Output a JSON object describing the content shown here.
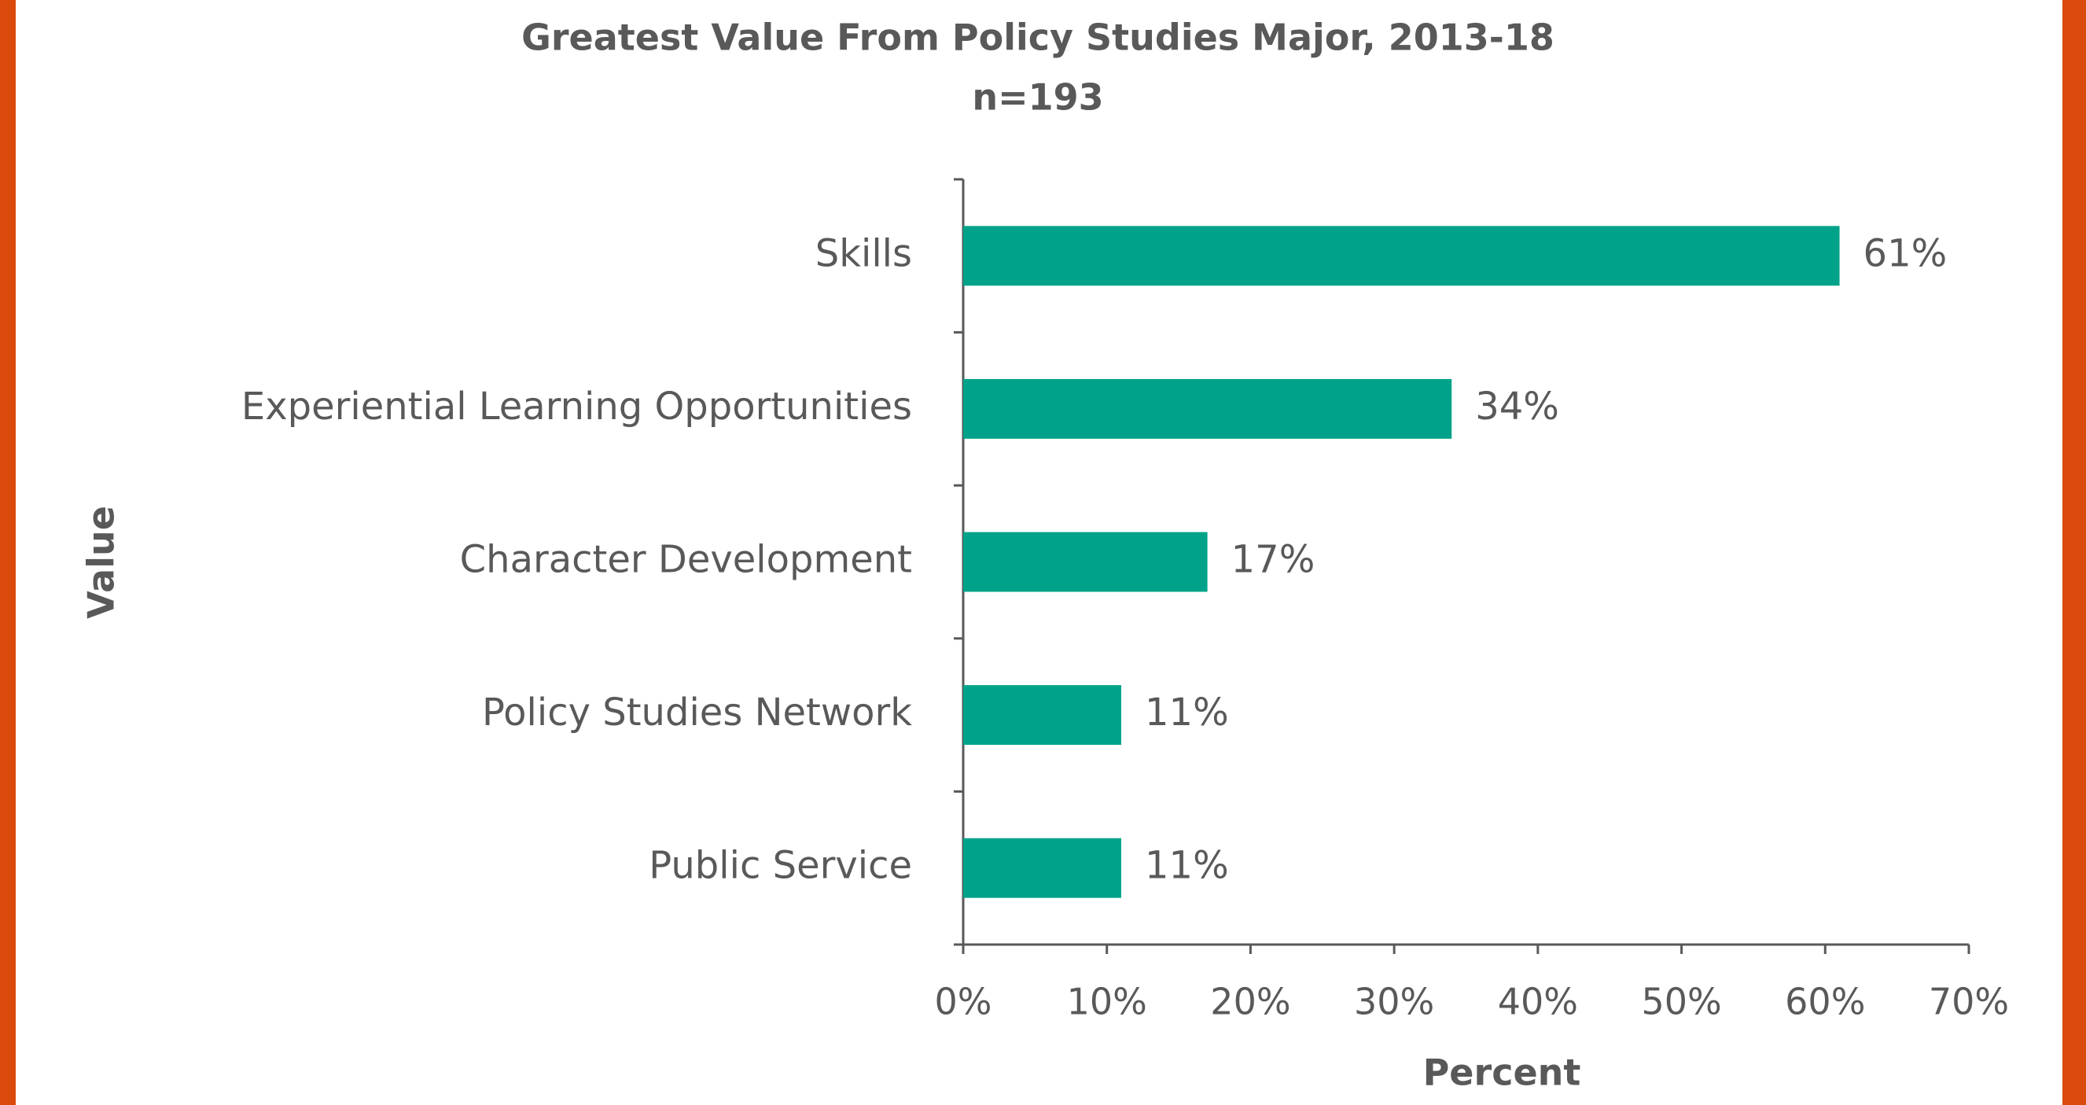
{
  "chart_data": {
    "type": "bar",
    "orientation": "horizontal",
    "title": "Greatest Value From Policy Studies Major, 2013-18",
    "subtitle": "n=193",
    "x_label": "Percent",
    "y_label": "Value",
    "categories": [
      "Skills",
      "Experiential Learning Opportunities",
      "Character Development",
      "Policy Studies Network",
      "Public Service"
    ],
    "values": [
      61,
      34,
      17,
      11,
      11
    ],
    "value_labels": [
      "61%",
      "34%",
      "17%",
      "11%",
      "11%"
    ],
    "color": "#00a389",
    "xlim": [
      0,
      70
    ],
    "xticks": [
      {
        "value": 0,
        "label": "0%"
      },
      {
        "value": 10,
        "label": "10%"
      },
      {
        "value": 20,
        "label": "20%"
      },
      {
        "value": 30,
        "label": "30%"
      },
      {
        "value": 40,
        "label": "40%"
      },
      {
        "value": 50,
        "label": "50%"
      },
      {
        "value": 60,
        "label": "60%"
      },
      {
        "value": 70,
        "label": "70%"
      }
    ],
    "grid": false
  }
}
